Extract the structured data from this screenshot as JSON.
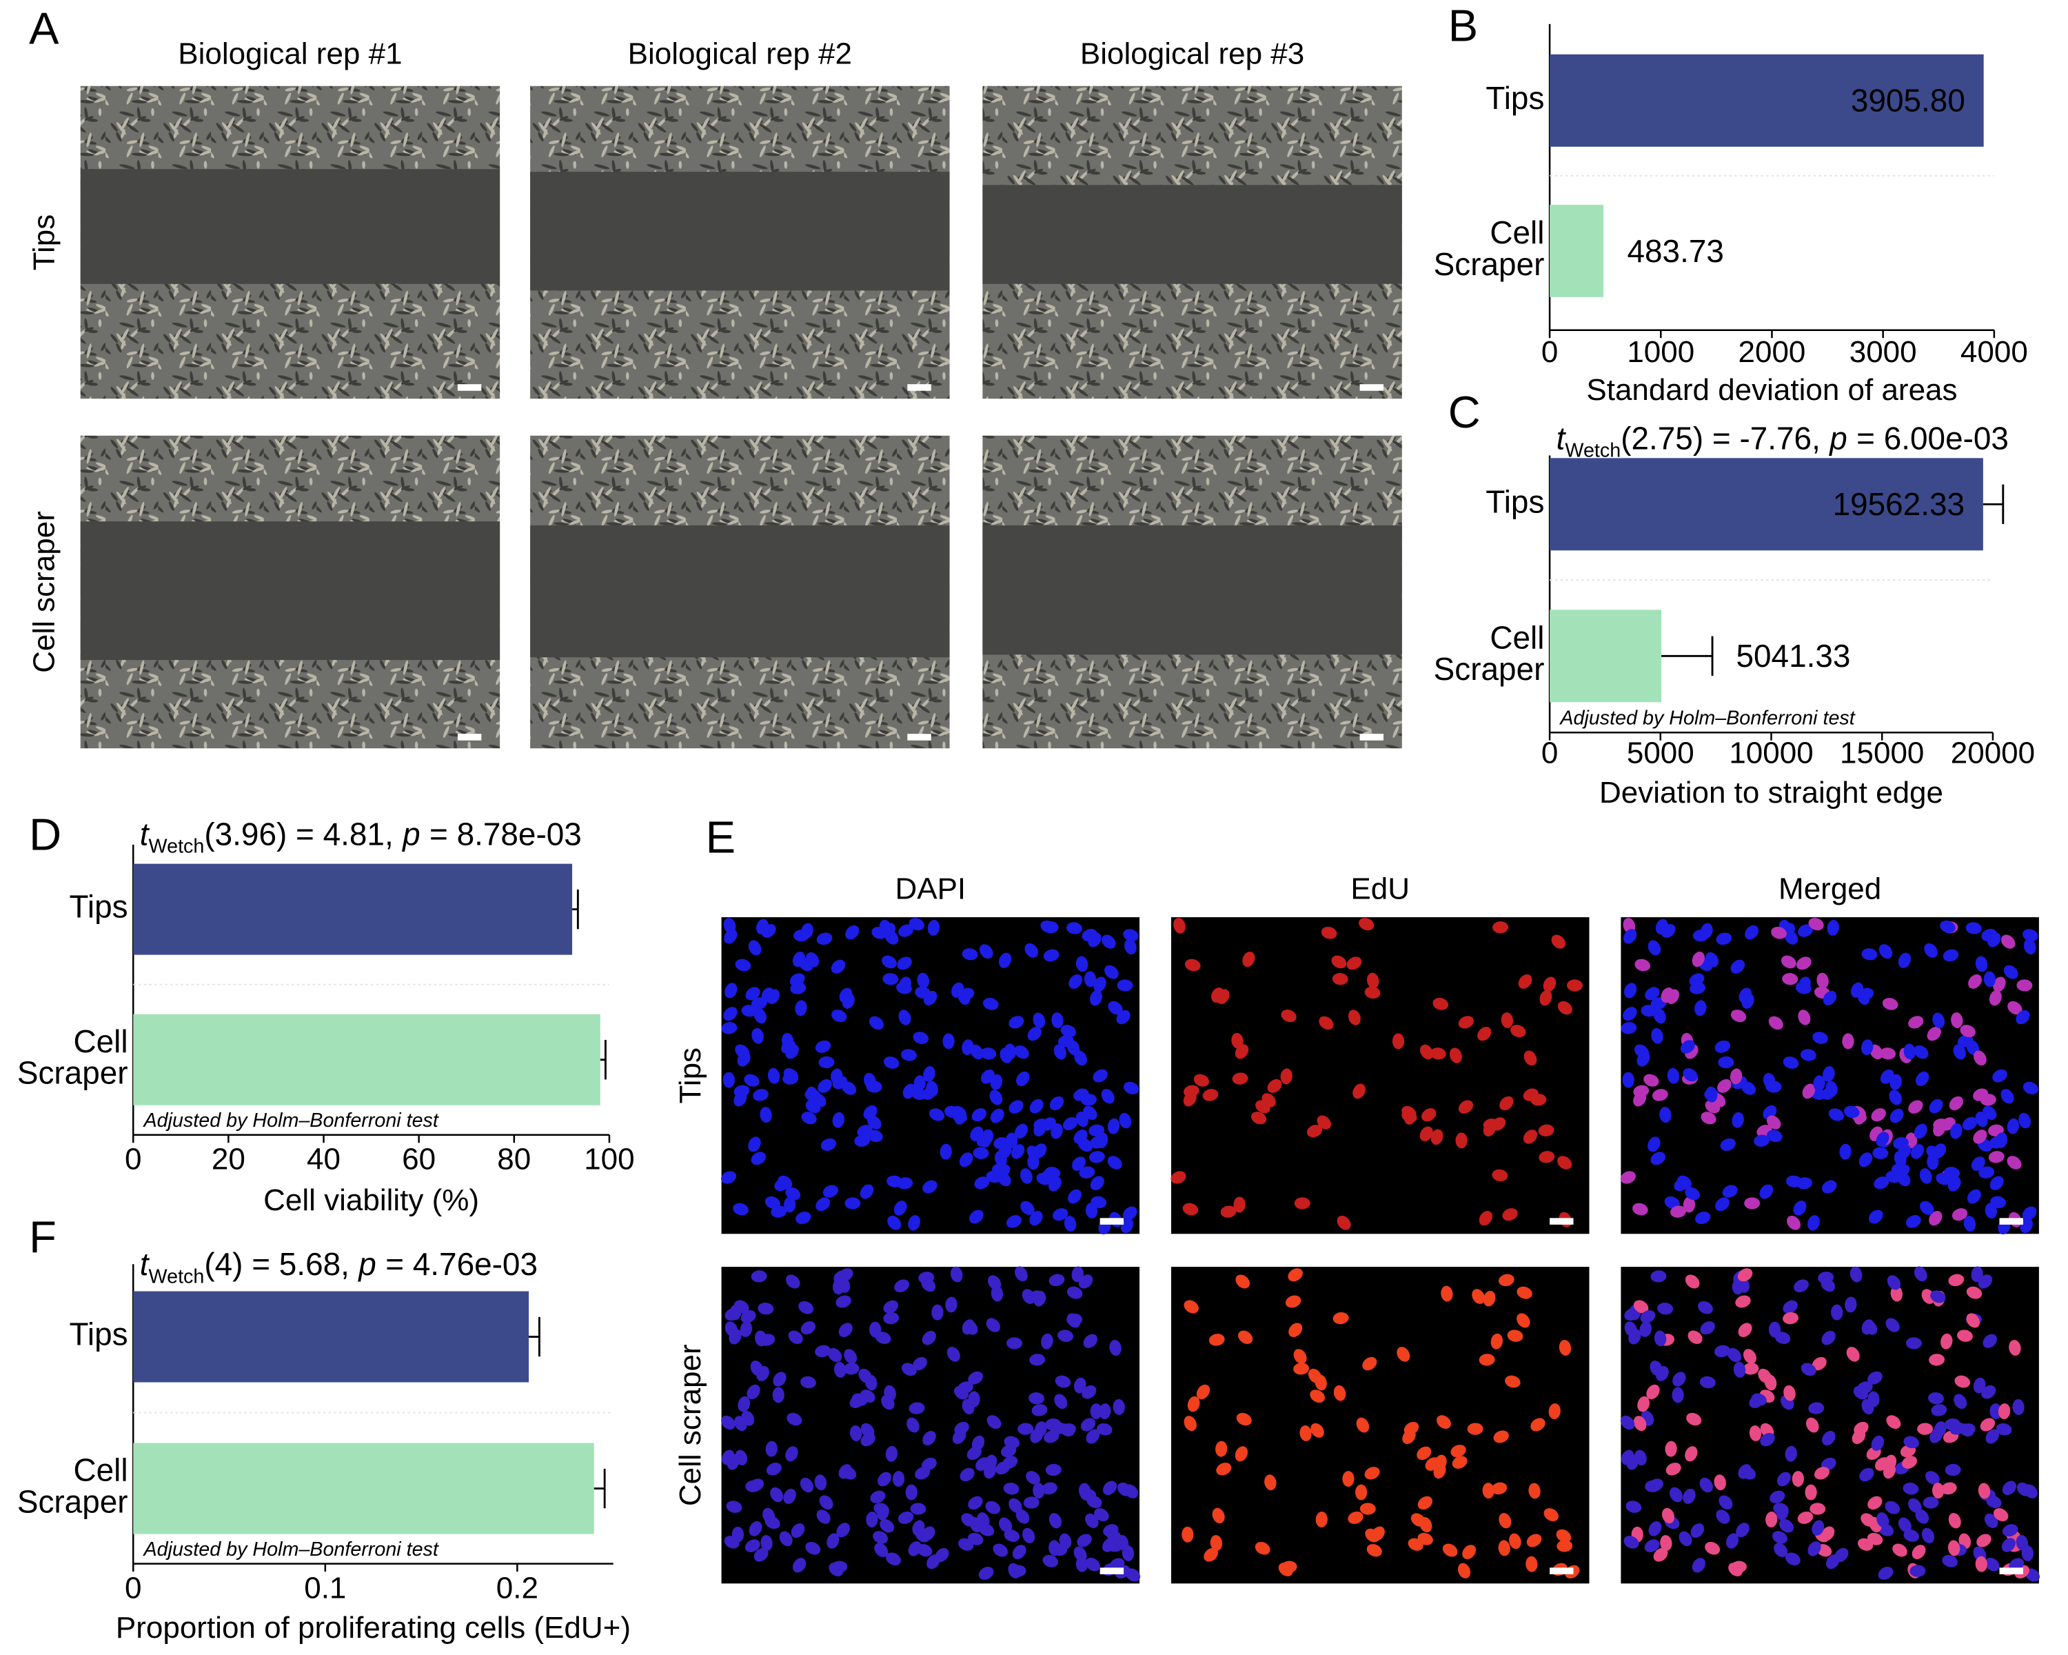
{
  "panel_a": {
    "label": "A",
    "columns": [
      "Biological rep #1",
      "Biological rep #2",
      "Biological rep #3"
    ],
    "rows": [
      "Tips",
      "Cell scraper"
    ]
  },
  "panel_e": {
    "label": "E",
    "columns": [
      "DAPI",
      "EdU",
      "Merged"
    ],
    "rows": [
      "Tips",
      "Cell scraper"
    ]
  },
  "chart_data": [
    {
      "type": "bar",
      "orientation": "horizontal",
      "panel_label": "B",
      "categories": [
        "Tips",
        "Cell Scraper"
      ],
      "values": [
        3905.8,
        483.73
      ],
      "value_labels": [
        "3905.80",
        "483.73"
      ],
      "colors": [
        "#3c4a8c",
        "#a3e2b8"
      ],
      "xlabel": "Standard deviation of areas",
      "xlim": [
        0,
        4000
      ],
      "xticks": [
        0,
        1000,
        2000,
        3000,
        4000
      ]
    },
    {
      "type": "bar",
      "orientation": "horizontal",
      "panel_label": "C",
      "title": {
        "t": "t",
        "subscript": "Wetch",
        "stat": "(2.75) = -7.76,",
        "p": "p",
        "p_value": "= 6.00e-03"
      },
      "categories": [
        "Tips",
        "Cell Scraper"
      ],
      "values": [
        19562.33,
        5041.33
      ],
      "value_labels": [
        "19562.33",
        "5041.33"
      ],
      "errors": [
        900,
        2300
      ],
      "colors": [
        "#3c4a8c",
        "#a3e2b8"
      ],
      "annotation": "Adjusted by Holm–Bonferroni test",
      "xlabel": "Deviation to straight edge",
      "xlim": [
        0,
        20000
      ],
      "xticks": [
        0,
        5000,
        10000,
        15000,
        20000
      ]
    },
    {
      "type": "bar",
      "orientation": "horizontal",
      "panel_label": "D",
      "title": {
        "t": "t",
        "subscript": "Wetch",
        "stat": "(3.96) = 4.81,",
        "p": "p",
        "p_value": "= 8.78e-03"
      },
      "categories": [
        "Tips",
        "Cell Scraper"
      ],
      "values": [
        92.2,
        98.1
      ],
      "errors": [
        1.2,
        1.1
      ],
      "colors": [
        "#3c4a8c",
        "#a3e2b8"
      ],
      "annotation": "Adjusted by Holm–Bonferroni test",
      "xlabel": "Cell viability (%)",
      "xlim": [
        0,
        100
      ],
      "xticks": [
        0,
        20,
        40,
        60,
        80,
        100
      ]
    },
    {
      "type": "bar",
      "orientation": "horizontal",
      "panel_label": "F",
      "title": {
        "t": "t",
        "subscript": "Wetch",
        "stat": "(4) = 5.68,",
        "p": "p",
        "p_value": "= 4.76e-03"
      },
      "categories": [
        "Tips",
        "Cell Scraper"
      ],
      "values": [
        0.206,
        0.24
      ],
      "errors": [
        0.0055,
        0.0055
      ],
      "colors": [
        "#3c4a8c",
        "#a3e2b8"
      ],
      "annotation": "Adjusted by Holm–Bonferroni test",
      "xlabel": "Proportion of proliferating cells (EdU+)",
      "xlim": [
        0,
        0.25
      ],
      "xticks": [
        0,
        0.1,
        0.2
      ]
    }
  ]
}
